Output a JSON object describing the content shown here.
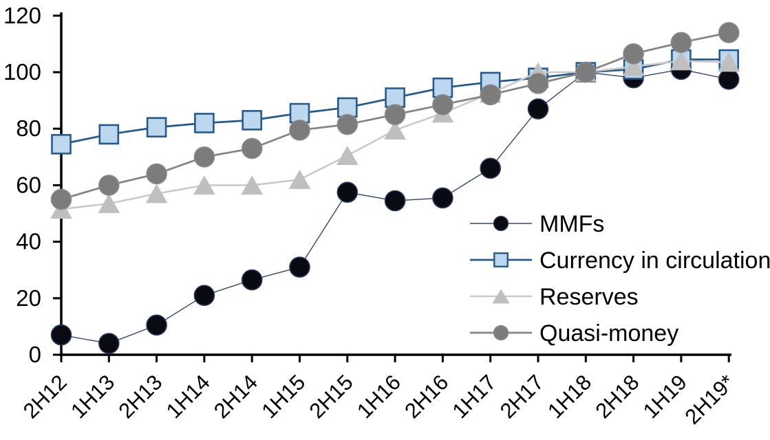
{
  "chart_data": {
    "type": "line",
    "title": "",
    "xlabel": "",
    "ylabel": "",
    "categories": [
      "2H12",
      "1H13",
      "2H13",
      "1H14",
      "2H14",
      "1H15",
      "2H15",
      "1H16",
      "2H16",
      "1H17",
      "2H17",
      "1H18",
      "2H18",
      "1H19",
      "2H19*"
    ],
    "series": [
      {
        "name": "MMFs",
        "marker": "circle",
        "marker_fill": "#0a0a12",
        "marker_stroke": "#2b3a5e",
        "line_color": "#34466b",
        "line_width": 1.4,
        "marker_size": 29,
        "values": [
          7,
          4,
          10.5,
          21,
          26.5,
          31,
          57.5,
          54.5,
          55.5,
          66,
          87,
          100,
          98,
          101,
          97.5
        ]
      },
      {
        "name": "Currency in circulation",
        "marker": "square",
        "marker_fill": "#bdd7ee",
        "marker_stroke": "#255a8c",
        "line_color": "#255a8c",
        "line_width": 2.8,
        "marker_size": 27,
        "values": [
          74.5,
          78,
          80.5,
          82,
          83,
          85.5,
          87.5,
          91,
          94.5,
          96.5,
          98,
          100,
          101,
          104.5,
          104.5
        ]
      },
      {
        "name": "Reserves",
        "marker": "triangle",
        "marker_fill": "#bfbfbf",
        "marker_stroke": "#c3c3c3",
        "line_color": "#c9c9c9",
        "line_width": 2.6,
        "marker_size": 30,
        "values": [
          51.5,
          53.5,
          57,
          60,
          60,
          62,
          70.5,
          79.5,
          85.5,
          92.5,
          100,
          100,
          102,
          104,
          103.5
        ]
      },
      {
        "name": "Quasi-money",
        "marker": "circle",
        "marker_fill": "#7c7c7c",
        "marker_stroke": "#8a8a8a",
        "line_color": "#858585",
        "line_width": 2.8,
        "marker_size": 29,
        "values": [
          55,
          60,
          64,
          70,
          73,
          79.5,
          81.5,
          85,
          88.5,
          92,
          96,
          100,
          106.5,
          110.5,
          114
        ]
      }
    ],
    "ylim": [
      0,
      120
    ],
    "yticks": [
      0,
      20,
      40,
      60,
      80,
      100,
      120
    ],
    "grid": "off",
    "legend_position": "center-right",
    "axis_color": "#000000",
    "background_color": "#ffffff"
  }
}
